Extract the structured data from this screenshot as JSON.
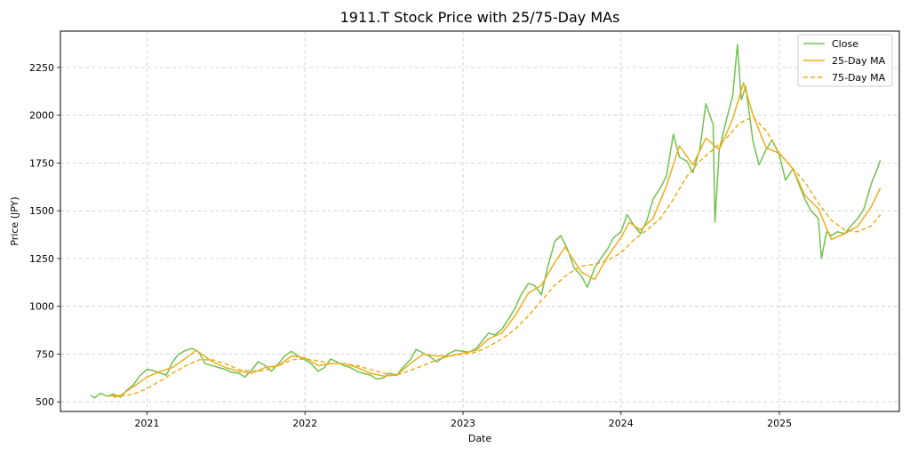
{
  "chart_data": {
    "type": "line",
    "title": "1911.T Stock Price with 25/75-Day MAs",
    "xlabel": "Date",
    "ylabel": "Price (JPY)",
    "xlim": [
      "2020-06-15",
      "2025-10-05"
    ],
    "ylim": [
      450,
      2440
    ],
    "x_ticks": [
      "2021-01-01",
      "2022-01-01",
      "2023-01-01",
      "2024-01-01",
      "2025-01-01"
    ],
    "x_tick_labels": [
      "2021",
      "2022",
      "2023",
      "2024",
      "2025"
    ],
    "y_ticks": [
      500,
      750,
      1000,
      1250,
      1500,
      1750,
      2000,
      2250
    ],
    "y_tick_labels": [
      "500",
      "750",
      "1000",
      "1250",
      "1500",
      "1750",
      "2000",
      "2250"
    ],
    "grid": true,
    "legend_position": "top-right",
    "series": [
      {
        "name": "Close",
        "color": "#72c150",
        "style": "solid",
        "points": [
          [
            "2020-08-24",
            535
          ],
          [
            "2020-09-01",
            520
          ],
          [
            "2020-09-15",
            545
          ],
          [
            "2020-10-01",
            530
          ],
          [
            "2020-10-15",
            540
          ],
          [
            "2020-11-01",
            525
          ],
          [
            "2020-11-15",
            560
          ],
          [
            "2020-12-01",
            590
          ],
          [
            "2020-12-15",
            635
          ],
          [
            "2021-01-01",
            670
          ],
          [
            "2021-01-15",
            665
          ],
          [
            "2021-02-01",
            650
          ],
          [
            "2021-02-15",
            640
          ],
          [
            "2021-03-01",
            710
          ],
          [
            "2021-03-15",
            750
          ],
          [
            "2021-04-01",
            770
          ],
          [
            "2021-04-15",
            780
          ],
          [
            "2021-05-01",
            760
          ],
          [
            "2021-05-15",
            700
          ],
          [
            "2021-06-01",
            690
          ],
          [
            "2021-06-15",
            680
          ],
          [
            "2021-07-01",
            670
          ],
          [
            "2021-07-15",
            655
          ],
          [
            "2021-08-01",
            650
          ],
          [
            "2021-08-15",
            630
          ],
          [
            "2021-09-01",
            670
          ],
          [
            "2021-09-15",
            710
          ],
          [
            "2021-10-01",
            690
          ],
          [
            "2021-10-15",
            660
          ],
          [
            "2021-11-01",
            700
          ],
          [
            "2021-11-15",
            740
          ],
          [
            "2021-12-01",
            765
          ],
          [
            "2021-12-15",
            740
          ],
          [
            "2022-01-01",
            720
          ],
          [
            "2022-01-15",
            700
          ],
          [
            "2022-02-01",
            660
          ],
          [
            "2022-02-15",
            680
          ],
          [
            "2022-03-01",
            725
          ],
          [
            "2022-03-15",
            710
          ],
          [
            "2022-04-01",
            690
          ],
          [
            "2022-04-15",
            680
          ],
          [
            "2022-05-01",
            660
          ],
          [
            "2022-05-15",
            650
          ],
          [
            "2022-06-01",
            640
          ],
          [
            "2022-06-15",
            620
          ],
          [
            "2022-07-01",
            625
          ],
          [
            "2022-07-15",
            650
          ],
          [
            "2022-08-01",
            640
          ],
          [
            "2022-08-15",
            680
          ],
          [
            "2022-09-01",
            720
          ],
          [
            "2022-09-15",
            775
          ],
          [
            "2022-10-01",
            755
          ],
          [
            "2022-10-15",
            740
          ],
          [
            "2022-11-01",
            710
          ],
          [
            "2022-11-15",
            730
          ],
          [
            "2022-12-01",
            755
          ],
          [
            "2022-12-15",
            770
          ],
          [
            "2023-01-01",
            765
          ],
          [
            "2023-01-15",
            760
          ],
          [
            "2023-02-01",
            780
          ],
          [
            "2023-02-15",
            820
          ],
          [
            "2023-03-01",
            860
          ],
          [
            "2023-03-15",
            850
          ],
          [
            "2023-04-01",
            880
          ],
          [
            "2023-04-15",
            930
          ],
          [
            "2023-05-01",
            990
          ],
          [
            "2023-05-15",
            1060
          ],
          [
            "2023-06-01",
            1120
          ],
          [
            "2023-06-15",
            1110
          ],
          [
            "2023-07-01",
            1060
          ],
          [
            "2023-07-15",
            1200
          ],
          [
            "2023-08-01",
            1340
          ],
          [
            "2023-08-15",
            1370
          ],
          [
            "2023-09-01",
            1290
          ],
          [
            "2023-09-15",
            1200
          ],
          [
            "2023-10-01",
            1160
          ],
          [
            "2023-10-15",
            1100
          ],
          [
            "2023-11-01",
            1200
          ],
          [
            "2023-11-15",
            1250
          ],
          [
            "2023-12-01",
            1300
          ],
          [
            "2023-12-15",
            1360
          ],
          [
            "2024-01-01",
            1390
          ],
          [
            "2024-01-15",
            1480
          ],
          [
            "2024-02-01",
            1420
          ],
          [
            "2024-02-15",
            1380
          ],
          [
            "2024-03-01",
            1450
          ],
          [
            "2024-03-15",
            1560
          ],
          [
            "2024-04-01",
            1620
          ],
          [
            "2024-04-15",
            1680
          ],
          [
            "2024-05-01",
            1900
          ],
          [
            "2024-05-15",
            1780
          ],
          [
            "2024-06-01",
            1760
          ],
          [
            "2024-06-15",
            1700
          ],
          [
            "2024-07-01",
            1820
          ],
          [
            "2024-07-15",
            2060
          ],
          [
            "2024-08-01",
            1950
          ],
          [
            "2024-08-05",
            1440
          ],
          [
            "2024-08-15",
            1820
          ],
          [
            "2024-09-01",
            1980
          ],
          [
            "2024-09-15",
            2100
          ],
          [
            "2024-09-26",
            2370
          ],
          [
            "2024-10-05",
            2080
          ],
          [
            "2024-10-15",
            2150
          ],
          [
            "2024-11-01",
            1860
          ],
          [
            "2024-11-15",
            1740
          ],
          [
            "2024-12-01",
            1820
          ],
          [
            "2024-12-15",
            1870
          ],
          [
            "2025-01-01",
            1790
          ],
          [
            "2025-01-15",
            1660
          ],
          [
            "2025-02-01",
            1720
          ],
          [
            "2025-02-15",
            1640
          ],
          [
            "2025-03-01",
            1560
          ],
          [
            "2025-03-15",
            1500
          ],
          [
            "2025-04-01",
            1460
          ],
          [
            "2025-04-08",
            1250
          ],
          [
            "2025-04-20",
            1390
          ],
          [
            "2025-05-01",
            1370
          ],
          [
            "2025-05-15",
            1390
          ],
          [
            "2025-06-01",
            1380
          ],
          [
            "2025-06-15",
            1420
          ],
          [
            "2025-07-01",
            1460
          ],
          [
            "2025-07-15",
            1510
          ],
          [
            "2025-08-01",
            1640
          ],
          [
            "2025-08-15",
            1720
          ],
          [
            "2025-08-22",
            1765
          ]
        ]
      },
      {
        "name": "25-Day MA",
        "color": "#ebae1c",
        "style": "solid",
        "points": [
          [
            "2020-10-01",
            530
          ],
          [
            "2020-11-01",
            535
          ],
          [
            "2020-12-01",
            580
          ],
          [
            "2021-01-01",
            630
          ],
          [
            "2021-02-01",
            660
          ],
          [
            "2021-03-01",
            680
          ],
          [
            "2021-04-01",
            730
          ],
          [
            "2021-04-25",
            770
          ],
          [
            "2021-06-01",
            710
          ],
          [
            "2021-07-01",
            680
          ],
          [
            "2021-08-01",
            660
          ],
          [
            "2021-09-01",
            650
          ],
          [
            "2021-10-01",
            680
          ],
          [
            "2021-11-01",
            690
          ],
          [
            "2021-12-01",
            740
          ],
          [
            "2022-01-01",
            730
          ],
          [
            "2022-02-01",
            690
          ],
          [
            "2022-03-01",
            700
          ],
          [
            "2022-04-01",
            700
          ],
          [
            "2022-05-01",
            680
          ],
          [
            "2022-06-01",
            650
          ],
          [
            "2022-07-01",
            635
          ],
          [
            "2022-08-01",
            640
          ],
          [
            "2022-09-01",
            700
          ],
          [
            "2022-10-01",
            750
          ],
          [
            "2022-11-01",
            740
          ],
          [
            "2022-12-01",
            740
          ],
          [
            "2023-01-01",
            755
          ],
          [
            "2023-02-01",
            770
          ],
          [
            "2023-03-01",
            830
          ],
          [
            "2023-04-01",
            860
          ],
          [
            "2023-05-01",
            950
          ],
          [
            "2023-06-01",
            1070
          ],
          [
            "2023-07-01",
            1110
          ],
          [
            "2023-08-01",
            1230
          ],
          [
            "2023-08-25",
            1310
          ],
          [
            "2023-10-01",
            1180
          ],
          [
            "2023-11-01",
            1140
          ],
          [
            "2023-12-01",
            1260
          ],
          [
            "2024-01-01",
            1360
          ],
          [
            "2024-01-20",
            1440
          ],
          [
            "2024-02-15",
            1400
          ],
          [
            "2024-03-15",
            1460
          ],
          [
            "2024-04-15",
            1630
          ],
          [
            "2024-05-15",
            1840
          ],
          [
            "2024-06-15",
            1740
          ],
          [
            "2024-07-15",
            1880
          ],
          [
            "2024-08-15",
            1820
          ],
          [
            "2024-09-15",
            1980
          ],
          [
            "2024-10-10",
            2170
          ],
          [
            "2024-11-01",
            2000
          ],
          [
            "2024-12-01",
            1830
          ],
          [
            "2025-01-01",
            1800
          ],
          [
            "2025-02-01",
            1720
          ],
          [
            "2025-03-01",
            1580
          ],
          [
            "2025-04-01",
            1510
          ],
          [
            "2025-05-01",
            1350
          ],
          [
            "2025-06-01",
            1380
          ],
          [
            "2025-07-01",
            1420
          ],
          [
            "2025-08-01",
            1520
          ],
          [
            "2025-08-22",
            1620
          ]
        ]
      },
      {
        "name": "75-Day MA",
        "color": "#ebae1c",
        "style": "dashed",
        "points": [
          [
            "2020-10-15",
            525
          ],
          [
            "2020-12-01",
            540
          ],
          [
            "2021-01-01",
            570
          ],
          [
            "2021-02-01",
            610
          ],
          [
            "2021-03-01",
            650
          ],
          [
            "2021-04-01",
            690
          ],
          [
            "2021-05-01",
            720
          ],
          [
            "2021-06-01",
            720
          ],
          [
            "2021-07-01",
            700
          ],
          [
            "2021-08-01",
            670
          ],
          [
            "2021-09-01",
            660
          ],
          [
            "2021-10-01",
            665
          ],
          [
            "2021-11-01",
            690
          ],
          [
            "2021-12-01",
            720
          ],
          [
            "2022-01-01",
            725
          ],
          [
            "2022-02-01",
            715
          ],
          [
            "2022-03-01",
            700
          ],
          [
            "2022-04-01",
            700
          ],
          [
            "2022-05-01",
            690
          ],
          [
            "2022-06-01",
            670
          ],
          [
            "2022-07-01",
            650
          ],
          [
            "2022-08-01",
            640
          ],
          [
            "2022-09-01",
            665
          ],
          [
            "2022-10-01",
            690
          ],
          [
            "2022-11-01",
            720
          ],
          [
            "2022-12-01",
            740
          ],
          [
            "2023-01-01",
            750
          ],
          [
            "2023-02-01",
            760
          ],
          [
            "2023-03-01",
            790
          ],
          [
            "2023-04-01",
            830
          ],
          [
            "2023-05-01",
            880
          ],
          [
            "2023-06-01",
            950
          ],
          [
            "2023-07-01",
            1030
          ],
          [
            "2023-08-01",
            1110
          ],
          [
            "2023-09-01",
            1170
          ],
          [
            "2023-10-01",
            1210
          ],
          [
            "2023-11-01",
            1220
          ],
          [
            "2023-12-01",
            1240
          ],
          [
            "2024-01-01",
            1280
          ],
          [
            "2024-02-01",
            1350
          ],
          [
            "2024-03-01",
            1400
          ],
          [
            "2024-04-01",
            1460
          ],
          [
            "2024-05-01",
            1560
          ],
          [
            "2024-06-01",
            1680
          ],
          [
            "2024-07-01",
            1760
          ],
          [
            "2024-08-01",
            1820
          ],
          [
            "2024-09-01",
            1880
          ],
          [
            "2024-10-01",
            1960
          ],
          [
            "2024-11-01",
            1990
          ],
          [
            "2024-12-01",
            1920
          ],
          [
            "2025-01-01",
            1800
          ],
          [
            "2025-02-01",
            1720
          ],
          [
            "2025-03-01",
            1650
          ],
          [
            "2025-04-01",
            1540
          ],
          [
            "2025-05-01",
            1450
          ],
          [
            "2025-06-01",
            1400
          ],
          [
            "2025-07-01",
            1390
          ],
          [
            "2025-08-01",
            1420
          ],
          [
            "2025-08-22",
            1480
          ]
        ]
      }
    ]
  }
}
